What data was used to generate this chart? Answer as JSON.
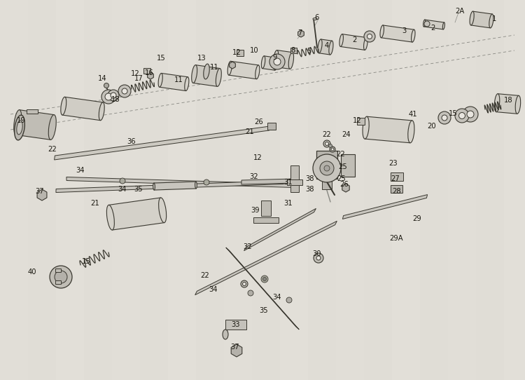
{
  "bg_color": "#e8e5df",
  "line_color": "#3a3830",
  "text_color": "#1a1810",
  "figsize": [
    7.5,
    5.42
  ],
  "dpi": 100,
  "paper_color": "#dedad2"
}
